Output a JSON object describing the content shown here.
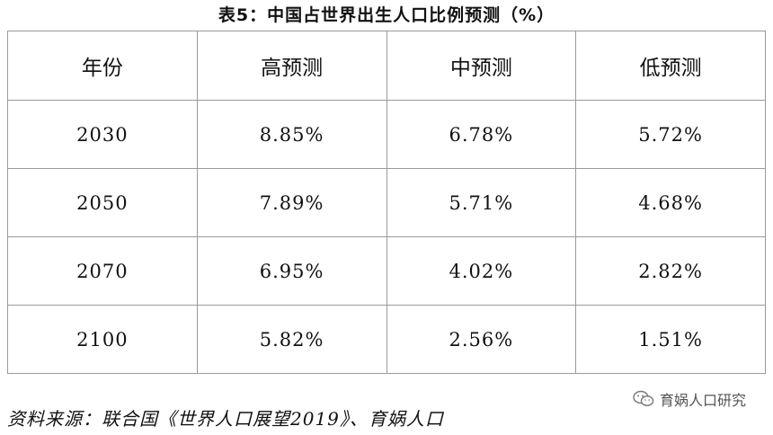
{
  "title": "表5：中国占世界出生人口比例预测（%）",
  "table": {
    "header": [
      "年份",
      "高预测",
      "中预测",
      "低预测"
    ],
    "rows": [
      [
        "2030",
        "8.85%",
        "6.78%",
        "5.72%"
      ],
      [
        "2050",
        "7.89%",
        "5.71%",
        "4.68%"
      ],
      [
        "2070",
        "6.95%",
        "4.02%",
        "2.82%"
      ],
      [
        "2100",
        "5.82%",
        "2.56%",
        "1.51%"
      ]
    ]
  },
  "source": "资料来源：联合国《世界人口展望2019》、育娲人口",
  "watermark": "育娲人口研究"
}
